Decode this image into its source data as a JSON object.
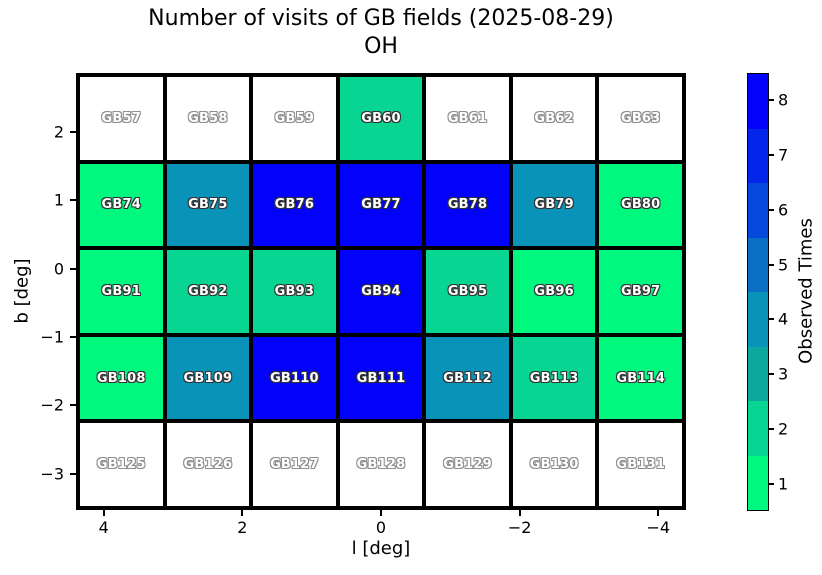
{
  "chart_data": {
    "type": "heatmap",
    "title_line1": "Number of visits of GB fields (2025-08-29)",
    "title_line2": "OH",
    "xlabel": "l [deg]",
    "ylabel": "b [deg]",
    "x_axis_inverted": true,
    "x_range": [
      4.4,
      -4.4
    ],
    "y_range": [
      2.86,
      -3.53
    ],
    "x_ticks": [
      {
        "label": "4",
        "value": 4
      },
      {
        "label": "2",
        "value": 2
      },
      {
        "label": "0",
        "value": 0
      },
      {
        "label": "−2",
        "value": -2
      },
      {
        "label": "−4",
        "value": -4
      }
    ],
    "y_ticks": [
      {
        "label": "2",
        "value": 2
      },
      {
        "label": "1",
        "value": 1
      },
      {
        "label": "0",
        "value": 0
      },
      {
        "label": "−1",
        "value": -1
      },
      {
        "label": "−2",
        "value": -2
      },
      {
        "label": "−3",
        "value": -3
      }
    ],
    "colorbar": {
      "label": "Observed Times",
      "tick_values": [
        8,
        7,
        6,
        5,
        4,
        3,
        2,
        1
      ],
      "min": 1,
      "max": 8,
      "colormap": "discrete green-to-blue (winter reversed); white cell = no visits"
    },
    "value_colors": {
      "0": "#ffffff",
      "1": "#00f87f",
      "2": "#09d593",
      "3": "#0ca89e",
      "4": "#0a93b8",
      "5": "#0a6ec4",
      "6": "#0449db",
      "7": "#0425ea",
      "8": "#0202fa"
    },
    "rows": [
      {
        "cells": [
          {
            "label": "GB57",
            "visits": 0
          },
          {
            "label": "GB58",
            "visits": 0
          },
          {
            "label": "GB59",
            "visits": 0
          },
          {
            "label": "GB60",
            "visits": 2
          },
          {
            "label": "GB61",
            "visits": 0
          },
          {
            "label": "GB62",
            "visits": 0
          },
          {
            "label": "GB63",
            "visits": 0
          }
        ]
      },
      {
        "cells": [
          {
            "label": "GB74",
            "visits": 1
          },
          {
            "label": "GB75",
            "visits": 4
          },
          {
            "label": "GB76",
            "visits": 8
          },
          {
            "label": "GB77",
            "visits": 8
          },
          {
            "label": "GB78",
            "visits": 8
          },
          {
            "label": "GB79",
            "visits": 4
          },
          {
            "label": "GB80",
            "visits": 1
          }
        ]
      },
      {
        "cells": [
          {
            "label": "GB91",
            "visits": 1
          },
          {
            "label": "GB92",
            "visits": 2
          },
          {
            "label": "GB93",
            "visits": 2
          },
          {
            "label": "GB94",
            "visits": 8
          },
          {
            "label": "GB95",
            "visits": 2
          },
          {
            "label": "GB96",
            "visits": 1
          },
          {
            "label": "GB97",
            "visits": 1
          }
        ]
      },
      {
        "cells": [
          {
            "label": "GB108",
            "visits": 1
          },
          {
            "label": "GB109",
            "visits": 4
          },
          {
            "label": "GB110",
            "visits": 8
          },
          {
            "label": "GB111",
            "visits": 8
          },
          {
            "label": "GB112",
            "visits": 4
          },
          {
            "label": "GB113",
            "visits": 2
          },
          {
            "label": "GB114",
            "visits": 1
          }
        ]
      },
      {
        "cells": [
          {
            "label": "GB125",
            "visits": 0
          },
          {
            "label": "GB126",
            "visits": 0
          },
          {
            "label": "GB127",
            "visits": 0
          },
          {
            "label": "GB128",
            "visits": 0
          },
          {
            "label": "GB129",
            "visits": 0
          },
          {
            "label": "GB130",
            "visits": 0
          },
          {
            "label": "GB131",
            "visits": 0
          }
        ]
      }
    ]
  }
}
